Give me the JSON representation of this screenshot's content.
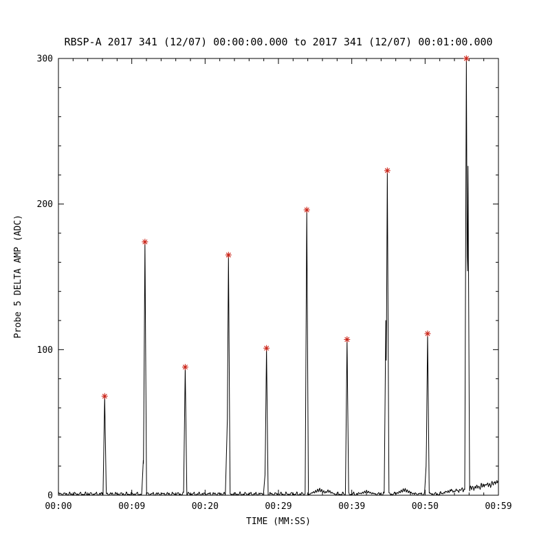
{
  "chart_data": {
    "type": "line",
    "title": "RBSP-A 2017 341 (12/07) 00:00:00.000 to 2017 341 (12/07) 00:01:00.000",
    "xlabel": "TIME (MM:SS)",
    "ylabel": "Probe 5 DELTA AMP (ADC)",
    "xlim": [
      0,
      59
    ],
    "ylim": [
      0,
      300
    ],
    "x_ticks": [
      {
        "value": 0,
        "label": "00:00"
      },
      {
        "value": 9.833,
        "label": "00:09"
      },
      {
        "value": 19.667,
        "label": "00:20"
      },
      {
        "value": 29.5,
        "label": "00:29"
      },
      {
        "value": 39.333,
        "label": "00:39"
      },
      {
        "value": 49.167,
        "label": "00:50"
      },
      {
        "value": 59,
        "label": "00:59"
      }
    ],
    "y_ticks": [
      {
        "value": 0,
        "label": "0"
      },
      {
        "value": 100,
        "label": "100"
      },
      {
        "value": 200,
        "label": "200"
      },
      {
        "value": 300,
        "label": "300"
      }
    ],
    "x_minor_per_interval": 4,
    "y_minor_step": 20,
    "line_color": "#000000",
    "axis_color": "#000000",
    "marker": {
      "symbol": "asterisk",
      "color": "#cc2418",
      "size": 4.5
    },
    "spikes": [
      {
        "t": 6.2,
        "peak": 68
      },
      {
        "t": 11.6,
        "peak": 174
      },
      {
        "t": 17.0,
        "peak": 88
      },
      {
        "t": 22.8,
        "peak": 165
      },
      {
        "t": 27.9,
        "peak": 101
      },
      {
        "t": 33.3,
        "peak": 196
      },
      {
        "t": 38.7,
        "peak": 107
      },
      {
        "t": 44.1,
        "peak": 223
      },
      {
        "t": 49.5,
        "peak": 111
      },
      {
        "t": 54.7,
        "peak": 300
      }
    ],
    "sub_spikes": [
      {
        "t": 11.38,
        "peak": 24
      },
      {
        "t": 22.6,
        "peak": 42
      },
      {
        "t": 27.7,
        "peak": 14
      },
      {
        "t": 43.9,
        "peak": 120
      },
      {
        "t": 49.3,
        "peak": 20
      },
      {
        "t": 54.92,
        "peak": 226
      }
    ],
    "humps": [
      {
        "t": 35.0,
        "h": 5,
        "w": 1.6
      },
      {
        "t": 36.2,
        "h": 4,
        "w": 1.0
      },
      {
        "t": 41.3,
        "h": 3.5,
        "w": 1.4
      },
      {
        "t": 46.4,
        "h": 5,
        "w": 1.6
      },
      {
        "t": 52.6,
        "h": 4,
        "w": 1.8
      },
      {
        "t": 57.3,
        "h": 8,
        "w": 2.2
      },
      {
        "t": 58.7,
        "h": 11,
        "w": 1.4
      }
    ],
    "baseline": {
      "noise_level": 1.5,
      "rise_start": 51,
      "rise_rate": 1.1
    }
  }
}
